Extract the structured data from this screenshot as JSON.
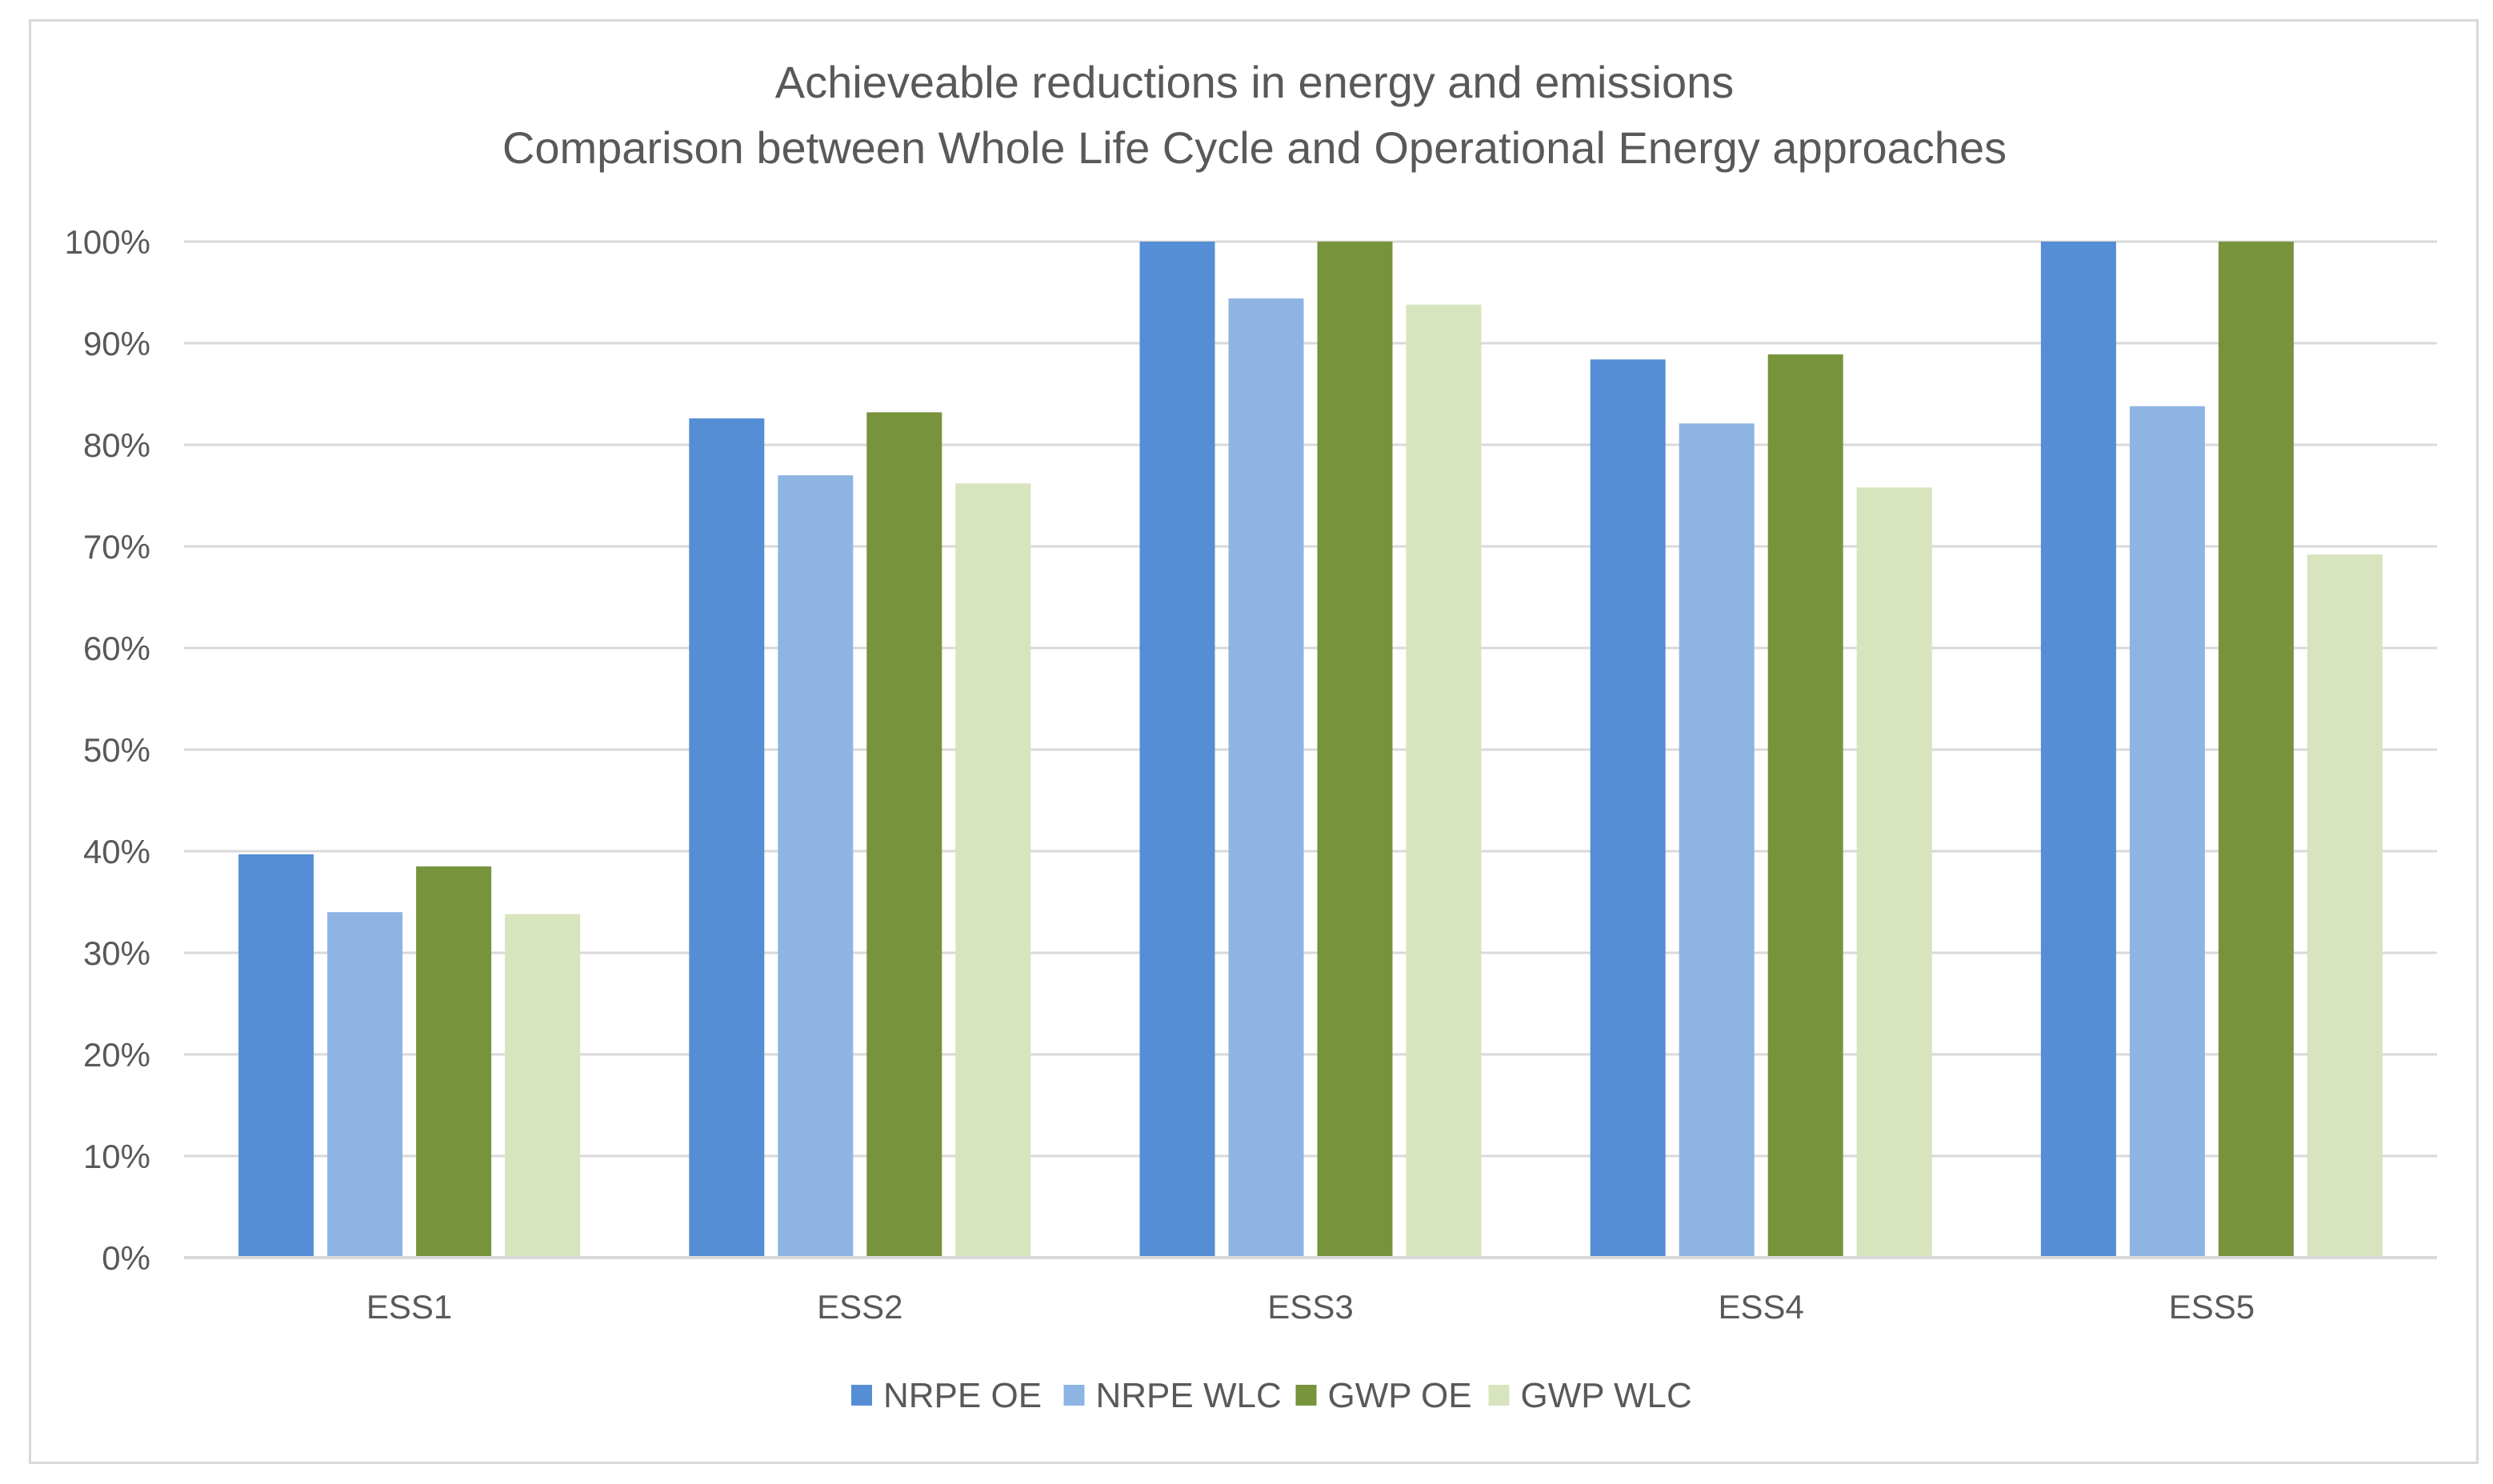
{
  "chart_data": {
    "type": "bar",
    "title": "Achieveable reductions in energy and emissions",
    "subtitle": "Comparison between  Whole Life Cycle and Operational Energy approaches",
    "xlabel": "",
    "ylabel": "",
    "ylim": [
      0,
      100
    ],
    "y_tick_step": 10,
    "y_tick_format": "{v}%",
    "grid": true,
    "legend_position": "bottom",
    "categories": [
      "ESS1",
      "ESS2",
      "ESS3",
      "ESS4",
      "ESS5"
    ],
    "series": [
      {
        "name": "NRPE OE",
        "color": "#558ED5",
        "values": [
          39.7,
          82.6,
          100,
          88.4,
          100
        ]
      },
      {
        "name": "NRPE WLC",
        "color": "#8EB4E3",
        "values": [
          34.0,
          77.0,
          94.4,
          82.1,
          83.8
        ]
      },
      {
        "name": "GWP OE",
        "color": "#77933C",
        "values": [
          38.5,
          83.2,
          100,
          88.9,
          100
        ]
      },
      {
        "name": "GWP WLC",
        "color": "#D7E4BD",
        "values": [
          33.8,
          76.2,
          93.8,
          75.8,
          69.2
        ]
      }
    ]
  }
}
